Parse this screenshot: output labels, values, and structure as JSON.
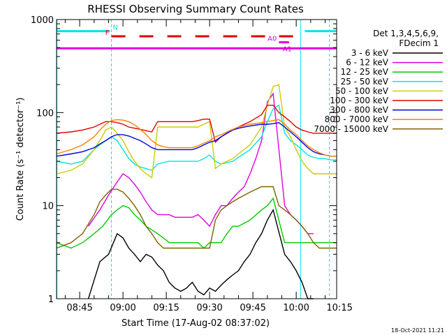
{
  "chart_data": {
    "type": "line",
    "title": "RHESSI Observing Summary Count Rates",
    "xlabel": "Start Time (17-Aug-02 08:37:02)",
    "ylabel": "Count Rate (s⁻¹ detector⁻¹)",
    "yscale": "log",
    "xlim": [
      37,
      134
    ],
    "ylim": [
      1,
      1000
    ],
    "x_unit": "minutes after 08:00",
    "x_ticks": [
      {
        "value": 45,
        "label": "08:45"
      },
      {
        "value": 60,
        "label": "09:00"
      },
      {
        "value": 75,
        "label": "09:15"
      },
      {
        "value": 90,
        "label": "09:30"
      },
      {
        "value": 105,
        "label": "09:45"
      },
      {
        "value": 120,
        "label": "10:00"
      },
      {
        "value": 135,
        "label": "10:15"
      }
    ],
    "y_ticks": [
      {
        "value": 1,
        "label": "1"
      },
      {
        "value": 10,
        "label": "10"
      },
      {
        "value": 100,
        "label": "100"
      },
      {
        "value": 1000,
        "label": "1000"
      }
    ],
    "legend_header": [
      "Det 1,3,4,5,6,9,",
      "FDecim 1"
    ],
    "legend_position": "right",
    "timestamp": "18-Oct-2021 11:21",
    "grid": false,
    "flag_bars": [
      {
        "label": "N",
        "color": "#00e5e5",
        "segments": [
          [
            37,
            55.5
          ],
          [
            123,
            134
          ]
        ],
        "level": 750
      },
      {
        "label": "F",
        "color": "#e00000",
        "dashed": true,
        "segments": [
          [
            56,
            121.5
          ]
        ],
        "level": 660
      },
      {
        "label": "A0",
        "color": "#e000e0",
        "segments": [
          [
            114,
            117.5
          ]
        ],
        "level": 570
      },
      {
        "label": "A1",
        "color": "#e000e0",
        "segments": [
          [
            37,
            134
          ]
        ],
        "level": 490
      }
    ],
    "vertical_lines": [
      {
        "x": 37.1,
        "color": "#00e5e5",
        "dashed": false
      },
      {
        "x": 56,
        "color": "#00e5e5",
        "dashed": true
      },
      {
        "x": 121.5,
        "color": "#00e5e5",
        "dashed": false
      },
      {
        "x": 131.5,
        "color": "#00e5e5",
        "dashed": true
      }
    ],
    "series": [
      {
        "name": "3 - 6 keV",
        "color": "#000000",
        "x": [
          48,
          52,
          55,
          58,
          60,
          62,
          64,
          66,
          68,
          70,
          72,
          74,
          76,
          78,
          80,
          82,
          84,
          86,
          88,
          90,
          92,
          94,
          96,
          98,
          100,
          102,
          104,
          106,
          108,
          110,
          112,
          116,
          118,
          120,
          122,
          124,
          126
        ],
        "y": [
          1,
          2.5,
          3,
          5,
          4.5,
          3.5,
          3,
          2.5,
          3,
          2.8,
          2.3,
          2,
          1.5,
          1.3,
          1.2,
          1.3,
          1.5,
          1.2,
          1.1,
          1.3,
          1.2,
          1.4,
          1.6,
          1.8,
          2,
          2.5,
          3,
          4,
          5,
          7,
          9,
          3,
          2.5,
          2,
          1.5,
          1,
          1
        ]
      },
      {
        "name": "6 - 12 keV",
        "color": "#e000e0",
        "x": [
          48,
          52,
          55,
          58,
          60,
          62,
          64,
          66,
          68,
          70,
          72,
          74,
          76,
          78,
          80,
          82,
          84,
          86,
          88,
          90,
          92,
          94,
          96,
          98,
          100,
          102,
          104,
          106,
          108,
          110,
          112,
          116,
          118,
          120,
          122,
          124,
          126
        ],
        "y": [
          6,
          9,
          13,
          18,
          22,
          20,
          17,
          14,
          11,
          9,
          8,
          8,
          8,
          7.5,
          7.5,
          7.5,
          7.5,
          8,
          7,
          6,
          8,
          10,
          10,
          12,
          14,
          16,
          22,
          32,
          50,
          130,
          160,
          10,
          8,
          7,
          6,
          5,
          5
        ]
      },
      {
        "name": "12 - 25 keV",
        "color": "#00cc00",
        "x": [
          37,
          42,
          46,
          50,
          53,
          56,
          58,
          60,
          62,
          64,
          66,
          68,
          70,
          72,
          74,
          76,
          78,
          80,
          82,
          84,
          86,
          88,
          90,
          92,
          94,
          96,
          98,
          100,
          104,
          108,
          110,
          112,
          116,
          118,
          120,
          122,
          124,
          126,
          130,
          134
        ],
        "y": [
          4,
          3.5,
          4,
          5,
          6,
          8,
          9,
          10,
          9.5,
          8,
          7,
          6,
          5.5,
          5,
          4.5,
          4,
          4,
          4,
          4,
          4,
          4,
          3.5,
          4,
          4,
          4,
          5,
          6,
          6,
          7,
          9,
          10,
          12,
          4,
          4,
          4,
          4,
          4,
          4,
          4,
          4
        ]
      },
      {
        "name": "25 - 50 keV",
        "color": "#00e5e5",
        "x": [
          37,
          42,
          46,
          50,
          52,
          54,
          56,
          58,
          60,
          62,
          64,
          66,
          68,
          70,
          72,
          74,
          76,
          78,
          80,
          82,
          84,
          86,
          88,
          90,
          92,
          94,
          96,
          98,
          100,
          104,
          108,
          110,
          112,
          114,
          116,
          118,
          120,
          122,
          124,
          126,
          128,
          130,
          132,
          134
        ],
        "y": [
          30,
          28,
          30,
          40,
          45,
          50,
          55,
          50,
          40,
          32,
          28,
          26,
          25,
          24,
          28,
          29,
          30,
          30,
          30,
          30,
          30,
          30,
          32,
          35,
          30,
          28,
          29,
          30,
          33,
          40,
          55,
          80,
          110,
          120,
          60,
          50,
          45,
          40,
          35,
          33,
          32,
          32,
          31,
          31
        ]
      },
      {
        "name": "50 - 100 keV",
        "color": "#cccc00",
        "x": [
          37,
          42,
          46,
          50,
          52,
          54,
          56,
          58,
          60,
          62,
          64,
          66,
          68,
          70,
          72,
          74,
          76,
          78,
          80,
          82,
          84,
          86,
          88,
          90,
          92,
          94,
          96,
          98,
          100,
          104,
          108,
          110,
          112,
          114,
          116,
          118,
          120,
          122,
          124,
          126,
          128,
          130,
          132,
          134
        ],
        "y": [
          22,
          24,
          28,
          40,
          50,
          65,
          70,
          60,
          50,
          38,
          30,
          25,
          22,
          20,
          70,
          70,
          70,
          70,
          70,
          70,
          70,
          70,
          75,
          80,
          25,
          28,
          30,
          32,
          36,
          45,
          70,
          120,
          190,
          200,
          70,
          55,
          40,
          30,
          25,
          22,
          22,
          22,
          22,
          22
        ]
      },
      {
        "name": "100 - 300 keV",
        "color": "#e00000",
        "x": [
          37,
          42,
          46,
          50,
          52,
          54,
          56,
          58,
          60,
          62,
          64,
          66,
          68,
          70,
          72,
          74,
          76,
          78,
          80,
          82,
          84,
          86,
          88,
          90,
          92,
          94,
          96,
          98,
          100,
          104,
          108,
          110,
          112,
          114,
          116,
          118,
          120,
          122,
          124,
          126,
          128,
          130,
          132,
          134
        ],
        "y": [
          60,
          62,
          65,
          70,
          75,
          80,
          80,
          78,
          75,
          70,
          68,
          66,
          64,
          62,
          80,
          80,
          80,
          80,
          80,
          80,
          80,
          82,
          85,
          85,
          48,
          55,
          60,
          65,
          70,
          80,
          95,
          120,
          120,
          100,
          90,
          80,
          70,
          65,
          62,
          60,
          60,
          60,
          60,
          60
        ]
      },
      {
        "name": "300 - 800 keV",
        "color": "#0000e0",
        "x": [
          37,
          42,
          46,
          50,
          52,
          54,
          56,
          58,
          60,
          62,
          64,
          66,
          68,
          70,
          72,
          74,
          76,
          78,
          80,
          82,
          84,
          86,
          88,
          90,
          92,
          94,
          96,
          98,
          100,
          104,
          108,
          110,
          112,
          114,
          116,
          118,
          120,
          122,
          124,
          126,
          128,
          130,
          132,
          134
        ],
        "y": [
          34,
          36,
          38,
          42,
          46,
          50,
          55,
          58,
          58,
          56,
          53,
          50,
          46,
          42,
          40,
          40,
          40,
          40,
          40,
          40,
          40,
          42,
          45,
          48,
          50,
          55,
          60,
          65,
          68,
          72,
          75,
          75,
          76,
          78,
          70,
          62,
          55,
          48,
          42,
          38,
          36,
          35,
          34,
          34
        ]
      },
      {
        "name": "800 - 7000 keV",
        "color": "#ff8000",
        "x": [
          37,
          42,
          46,
          50,
          52,
          54,
          56,
          58,
          60,
          62,
          64,
          66,
          68,
          70,
          72,
          74,
          76,
          78,
          80,
          82,
          84,
          86,
          88,
          90,
          92,
          94,
          96,
          98,
          100,
          104,
          108,
          110,
          112,
          114,
          116,
          118,
          120,
          122,
          124,
          126,
          128,
          130,
          132,
          134
        ],
        "y": [
          36,
          40,
          45,
          55,
          65,
          75,
          82,
          84,
          83,
          80,
          74,
          66,
          58,
          50,
          45,
          43,
          42,
          42,
          42,
          42,
          42,
          44,
          47,
          50,
          55,
          58,
          62,
          66,
          70,
          75,
          78,
          80,
          82,
          84,
          75,
          65,
          58,
          50,
          44,
          40,
          37,
          35,
          34,
          34
        ]
      },
      {
        "name": "7000 - 15000 keV",
        "color": "#806000",
        "x": [
          37,
          42,
          46,
          50,
          52,
          54,
          56,
          58,
          60,
          62,
          64,
          66,
          68,
          70,
          72,
          74,
          76,
          78,
          80,
          82,
          84,
          86,
          88,
          90,
          92,
          94,
          96,
          98,
          100,
          104,
          108,
          110,
          112,
          114,
          116,
          118,
          120,
          122,
          124,
          126,
          128,
          130,
          132,
          134
        ],
        "y": [
          3.5,
          4,
          5,
          8,
          11,
          13,
          15,
          15,
          14,
          12,
          10,
          8,
          6,
          5,
          4,
          3.5,
          3.5,
          3.5,
          3.5,
          3.5,
          3.5,
          3.5,
          3.5,
          3.5,
          7,
          9,
          10,
          11,
          12,
          14,
          16,
          16,
          16,
          10,
          9,
          8,
          7,
          6,
          5,
          4,
          3.5,
          3.5,
          3.5,
          3.5
        ]
      }
    ]
  }
}
